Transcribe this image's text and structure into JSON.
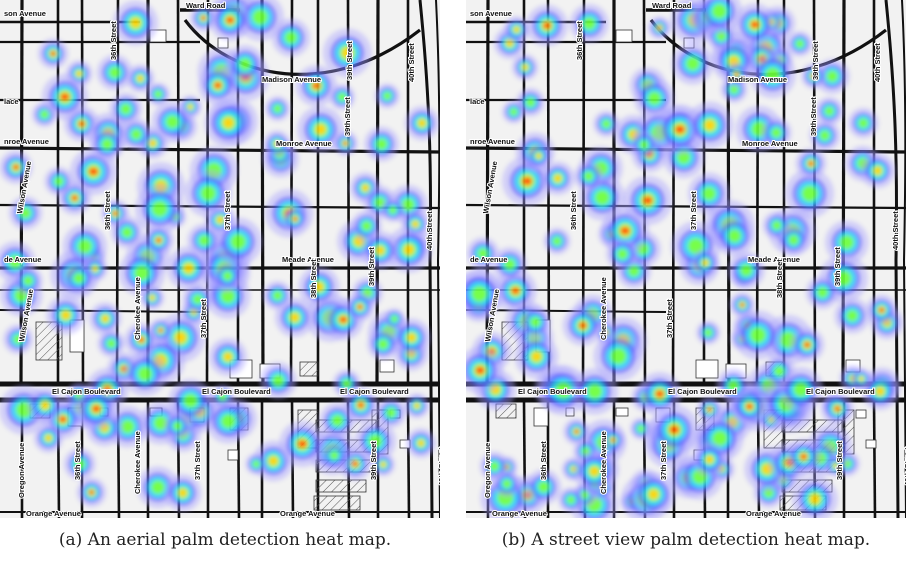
{
  "captions": {
    "a": "(a) An aerial palm detection heat map.",
    "b": "(b) A street view palm detection heat map."
  },
  "map_labels": {
    "ward_road": "Ward Road",
    "madison_avenue": "Madison Avenue",
    "madison_avenue_left": "son Avenue",
    "monroe_avenue": "Monroe Avenue",
    "monroe_avenue_left": "nroe Avenue",
    "meade_avenue": "Meade Avenue",
    "meade_avenue_left": "de Avenue",
    "el_cajon_boulevard": "El Cajon Boulevard",
    "orange_avenue": "Orange Avenue",
    "wilson_avenue": "Wilson Avenue",
    "cherokee_avenue": "Cherokee Avenue",
    "oregon_avenue": "Oregon Avenue",
    "street_36th": "36th Street",
    "street_37th": "37th Street",
    "street_38th": "38th Street",
    "street_39th": "39th Street",
    "street_40th": "40th Street",
    "place": "lace"
  },
  "heat_colors": [
    "#ff2a00",
    "#ffd200",
    "#6cff3a",
    "#00e8ff",
    "#3a3aff",
    "#a7a0ff"
  ]
}
